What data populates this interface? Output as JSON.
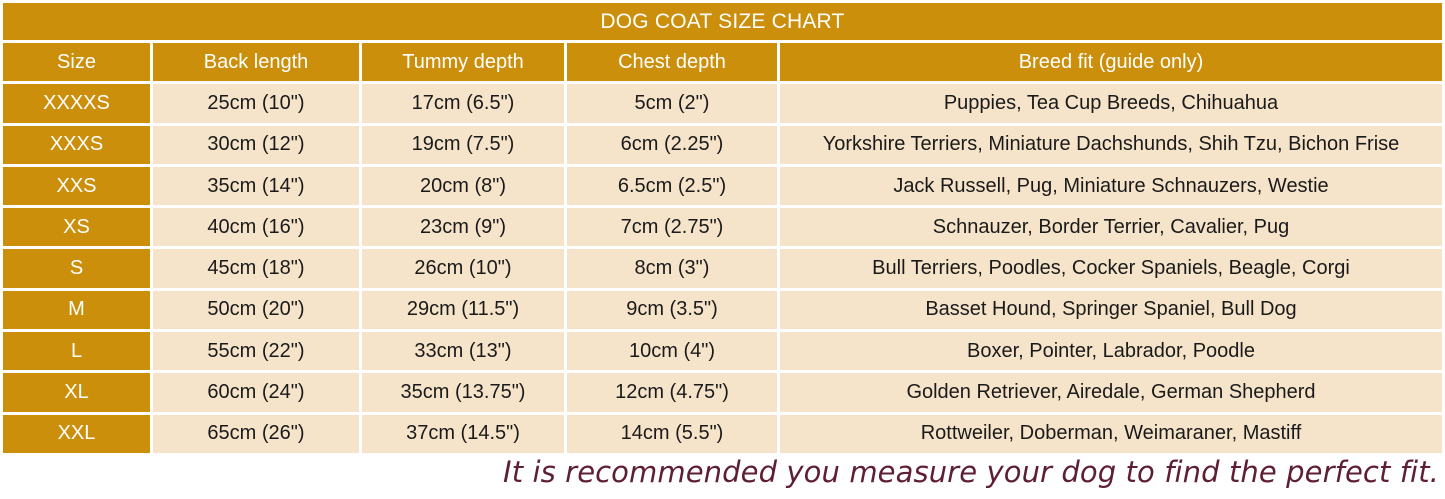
{
  "title": "DOG COAT SIZE CHART",
  "headers": [
    "Size",
    "Back length",
    "Tummy depth",
    "Chest depth",
    "Breed fit (guide only)"
  ],
  "rows": [
    {
      "size": "XXXXS",
      "back": "25cm (10\")",
      "tummy": "17cm (6.5\")",
      "chest": "5cm (2\")",
      "breeds": "Puppies, Tea Cup Breeds, Chihuahua"
    },
    {
      "size": "XXXS",
      "back": "30cm (12\")",
      "tummy": "19cm (7.5\")",
      "chest": "6cm (2.25\")",
      "breeds": "Yorkshire Terriers, Miniature Dachshunds, Shih Tzu, Bichon Frise"
    },
    {
      "size": "XXS",
      "back": "35cm (14\")",
      "tummy": "20cm (8\")",
      "chest": "6.5cm (2.5\")",
      "breeds": "Jack Russell, Pug, Miniature Schnauzers, Westie"
    },
    {
      "size": "XS",
      "back": "40cm (16\")",
      "tummy": "23cm (9\")",
      "chest": "7cm (2.75\")",
      "breeds": "Schnauzer, Border Terrier, Cavalier, Pug"
    },
    {
      "size": "S",
      "back": "45cm (18\")",
      "tummy": "26cm (10\")",
      "chest": "8cm (3\")",
      "breeds": "Bull Terriers, Poodles, Cocker Spaniels, Beagle, Corgi"
    },
    {
      "size": "M",
      "back": "50cm (20\")",
      "tummy": "29cm (11.5\")",
      "chest": "9cm (3.5\")",
      "breeds": "Basset Hound, Springer Spaniel, Bull Dog"
    },
    {
      "size": "L",
      "back": "55cm (22\")",
      "tummy": "33cm (13\")",
      "chest": "10cm (4\")",
      "breeds": "Boxer, Pointer, Labrador, Poodle"
    },
    {
      "size": "XL",
      "back": "60cm (24\")",
      "tummy": "35cm (13.75\")",
      "chest": "12cm (4.75\")",
      "breeds": "Golden Retriever, Airedale, German Shepherd"
    },
    {
      "size": "XXL",
      "back": "65cm (26\")",
      "tummy": "37cm (14.5\")",
      "chest": "14cm (5.5\")",
      "breeds": "Rottweiler, Doberman, Weimaraner, Mastiff"
    }
  ],
  "footnote": "It is recommended you measure your dog to find the perfect fit.",
  "colors": {
    "header_bg": "#cc8f0b",
    "cell_bg": "#f6e4ca",
    "footnote_text": "#5e1f35"
  }
}
